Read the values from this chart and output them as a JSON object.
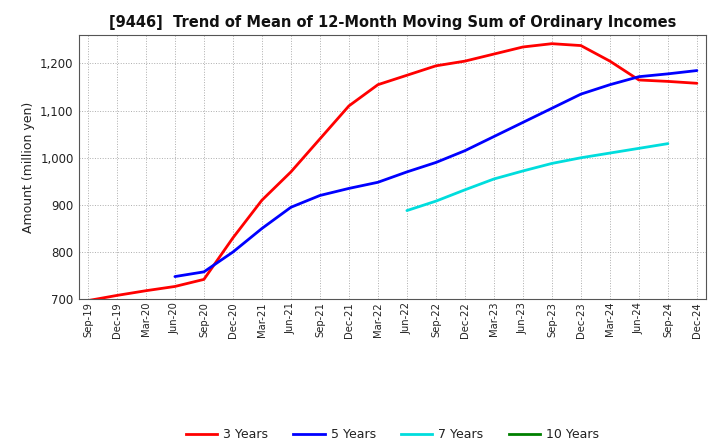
{
  "title": "[9446]  Trend of Mean of 12-Month Moving Sum of Ordinary Incomes",
  "ylabel": "Amount (million yen)",
  "ylim": [
    700,
    1260
  ],
  "yticks": [
    700,
    800,
    900,
    1000,
    1100,
    1200
  ],
  "background_color": "#ffffff",
  "grid_color": "#999999",
  "x_labels": [
    "Sep-19",
    "Dec-19",
    "Mar-20",
    "Jun-20",
    "Sep-20",
    "Dec-20",
    "Mar-21",
    "Jun-21",
    "Sep-21",
    "Dec-21",
    "Mar-22",
    "Jun-22",
    "Sep-22",
    "Dec-22",
    "Mar-23",
    "Jun-23",
    "Sep-23",
    "Dec-23",
    "Mar-24",
    "Jun-24",
    "Sep-24",
    "Dec-24"
  ],
  "series": {
    "3 Years": {
      "color": "#ff0000",
      "linewidth": 2.0,
      "data_x": [
        0,
        1,
        2,
        3,
        4,
        5,
        6,
        7,
        8,
        9,
        10,
        11,
        12,
        13,
        14,
        15,
        16,
        17,
        18,
        19,
        20,
        21
      ],
      "data_y": [
        697,
        708,
        718,
        727,
        742,
        830,
        910,
        970,
        1040,
        1110,
        1155,
        1175,
        1195,
        1205,
        1220,
        1235,
        1242,
        1238,
        1205,
        1165,
        1162,
        1158
      ]
    },
    "5 Years": {
      "color": "#0000ff",
      "linewidth": 2.0,
      "data_x": [
        3,
        4,
        5,
        6,
        7,
        8,
        9,
        10,
        11,
        12,
        13,
        14,
        15,
        16,
        17,
        18,
        19,
        20,
        21
      ],
      "data_y": [
        748,
        758,
        800,
        850,
        895,
        920,
        935,
        948,
        970,
        990,
        1015,
        1045,
        1075,
        1105,
        1135,
        1155,
        1172,
        1178,
        1185
      ]
    },
    "7 Years": {
      "color": "#00dddd",
      "linewidth": 2.0,
      "data_x": [
        11,
        12,
        13,
        14,
        15,
        16,
        17,
        18,
        19,
        20
      ],
      "data_y": [
        888,
        908,
        932,
        955,
        972,
        988,
        1000,
        1010,
        1020,
        1030
      ]
    },
    "10 Years": {
      "color": "#008000",
      "linewidth": 2.0,
      "data_x": [],
      "data_y": []
    }
  }
}
